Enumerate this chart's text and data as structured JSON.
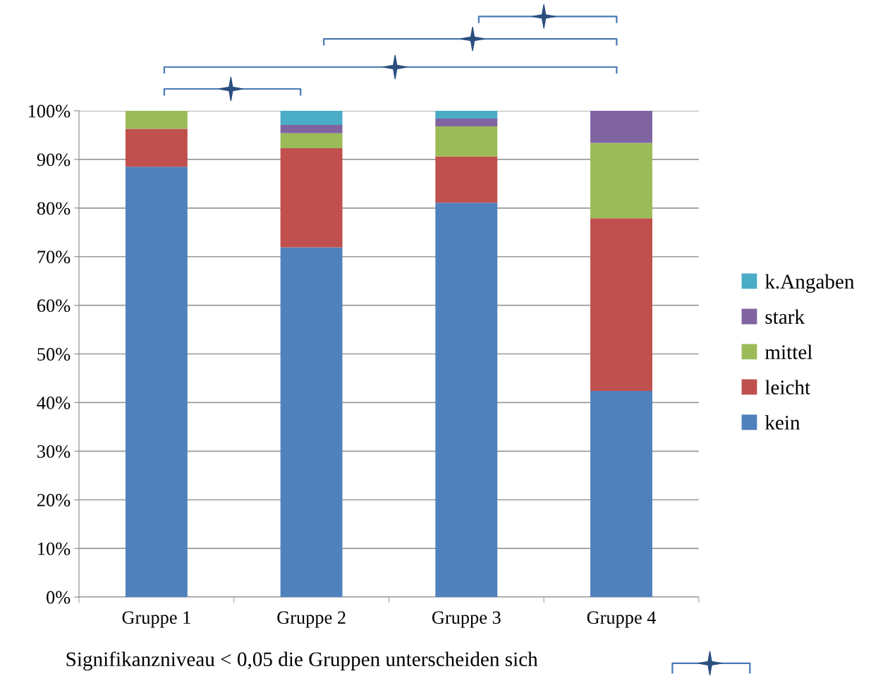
{
  "chart_data": {
    "type": "bar",
    "stacked": true,
    "categories": [
      "Gruppe 1",
      "Gruppe 2",
      "Gruppe 3",
      "Gruppe 4"
    ],
    "series": [
      {
        "name": "kein",
        "color": "#4f81bd",
        "values": [
          88.5,
          71.9,
          81.1,
          42.4
        ]
      },
      {
        "name": "leicht",
        "color": "#c0504d",
        "values": [
          7.8,
          20.4,
          9.5,
          35.5
        ]
      },
      {
        "name": "mittel",
        "color": "#9bbb59",
        "values": [
          3.7,
          3.1,
          6.2,
          15.5
        ]
      },
      {
        "name": "stark",
        "color": "#8064a2",
        "values": [
          0,
          1.7,
          1.6,
          6.6
        ]
      },
      {
        "name": "k.Angaben",
        "color": "#4bacc6",
        "values": [
          0,
          2.9,
          1.6,
          0
        ]
      }
    ],
    "ylim": [
      0,
      100
    ],
    "yticks": [
      {
        "value": 0,
        "label": "0%"
      },
      {
        "value": 10,
        "label": "10%"
      },
      {
        "value": 20,
        "label": "20%"
      },
      {
        "value": 30,
        "label": "30%"
      },
      {
        "value": 40,
        "label": "40%"
      },
      {
        "value": 50,
        "label": "50%"
      },
      {
        "value": 60,
        "label": "60%"
      },
      {
        "value": 70,
        "label": "70%"
      },
      {
        "value": 80,
        "label": "80%"
      },
      {
        "value": 90,
        "label": "90%"
      },
      {
        "value": 100,
        "label": "100%"
      }
    ],
    "grid": "y",
    "legend": "right",
    "annotations": [
      "Signifikanzniveau < 0,05 die Gruppen unterscheiden sich"
    ]
  }
}
